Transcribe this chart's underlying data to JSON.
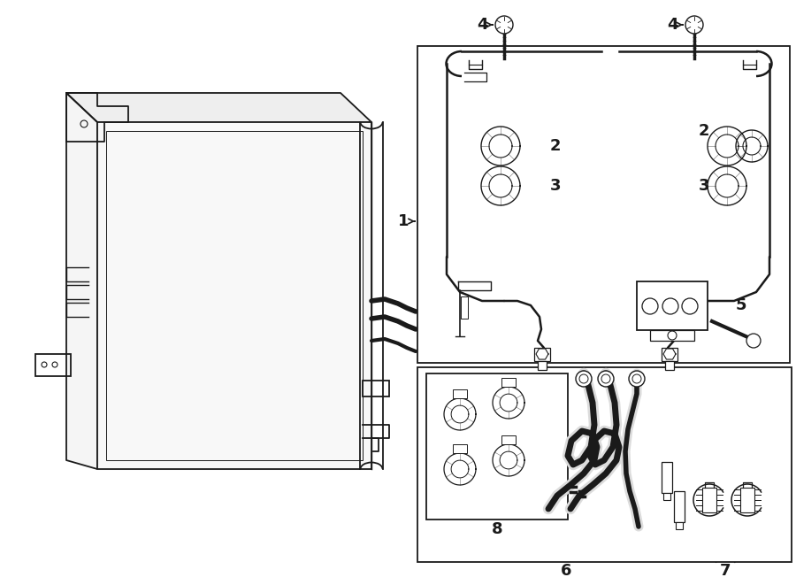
{
  "bg_color": "#ffffff",
  "line_color": "#1a1a1a",
  "figsize": [
    9.0,
    6.61
  ],
  "dpi": 100,
  "lw": 1.3
}
